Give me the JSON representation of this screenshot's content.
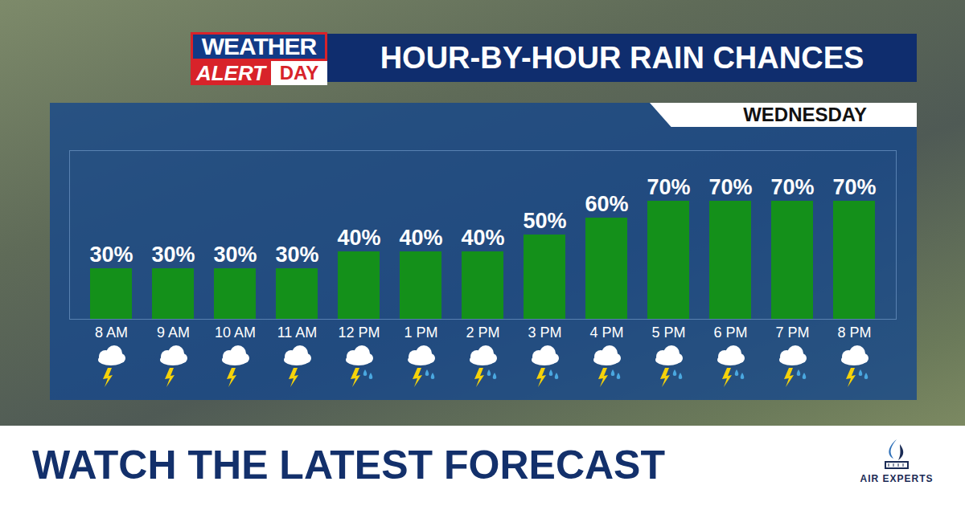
{
  "chart_data": {
    "type": "bar",
    "title": "HOUR-BY-HOUR RAIN CHANCES",
    "subtitle": "WEDNESDAY",
    "annotations": [
      "WEATHER",
      "ALERT",
      "DAY",
      "WATCH THE LATEST FORECAST",
      "AIR EXPERTS"
    ],
    "categories": [
      "8 AM",
      "9 AM",
      "10 AM",
      "11 AM",
      "12 PM",
      "1 PM",
      "2 PM",
      "3 PM",
      "4 PM",
      "5 PM",
      "6 PM",
      "7 PM",
      "8 PM"
    ],
    "values": [
      30,
      30,
      30,
      30,
      40,
      40,
      40,
      50,
      60,
      70,
      70,
      70,
      70
    ],
    "value_labels": [
      "30%",
      "30%",
      "30%",
      "30%",
      "40%",
      "40%",
      "40%",
      "50%",
      "60%",
      "70%",
      "70%",
      "70%",
      "70%"
    ],
    "data_labels": true,
    "color": "#14901a",
    "ylim": [
      0,
      100
    ],
    "grid": false,
    "tick_labels": "x"
  }
}
